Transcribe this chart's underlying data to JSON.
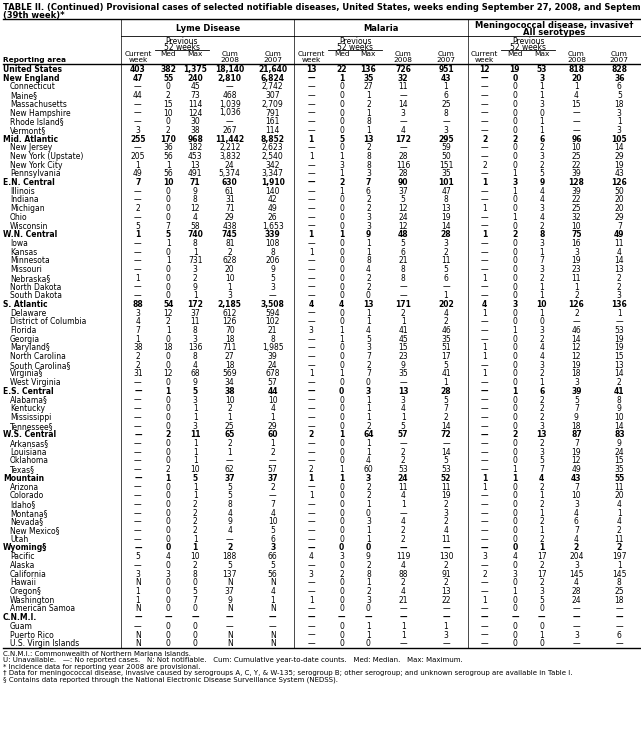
{
  "title_line1": "TABLE II. (Continued) Provisional cases of selected notifiable diseases, United States, weeks ending September 27, 2008, and September 29, 2007",
  "title_line2": "(39th week)*",
  "col_groups": [
    "Lyme Disease",
    "Malaria",
    "Meningococcal disease, invasive†\nAll serotypes"
  ],
  "rows": [
    [
      "United States",
      "403",
      "382",
      "1,375",
      "18,140",
      "21,640",
      "13",
      "22",
      "136",
      "726",
      "951",
      "12",
      "19",
      "53",
      "818",
      "828"
    ],
    [
      "New England",
      "47",
      "55",
      "240",
      "2,810",
      "6,824",
      "—",
      "1",
      "35",
      "32",
      "43",
      "—",
      "0",
      "3",
      "20",
      "36"
    ],
    [
      "Connecticut",
      "—",
      "0",
      "45",
      "—",
      "2,742",
      "—",
      "0",
      "27",
      "11",
      "1",
      "—",
      "0",
      "1",
      "1",
      "6"
    ],
    [
      "Maine§",
      "44",
      "2",
      "73",
      "468",
      "307",
      "—",
      "0",
      "1",
      "—",
      "6",
      "—",
      "0",
      "1",
      "4",
      "5"
    ],
    [
      "Massachusetts",
      "—",
      "15",
      "114",
      "1,039",
      "2,709",
      "—",
      "0",
      "2",
      "14",
      "25",
      "—",
      "0",
      "3",
      "15",
      "18"
    ],
    [
      "New Hampshire",
      "—",
      "10",
      "124",
      "1,036",
      "791",
      "—",
      "0",
      "1",
      "3",
      "8",
      "—",
      "0",
      "0",
      "—",
      "3"
    ],
    [
      "Rhode Island§",
      "—",
      "0",
      "30",
      "—",
      "161",
      "—",
      "0",
      "8",
      "—",
      "—",
      "—",
      "0",
      "1",
      "—",
      "1"
    ],
    [
      "Vermont§",
      "3",
      "2",
      "38",
      "267",
      "114",
      "—",
      "0",
      "1",
      "4",
      "3",
      "—",
      "0",
      "1",
      "—",
      "3"
    ],
    [
      "Mid. Atlantic",
      "255",
      "170",
      "968",
      "11,442",
      "8,852",
      "1",
      "5",
      "13",
      "172",
      "295",
      "2",
      "2",
      "6",
      "96",
      "105"
    ],
    [
      "New Jersey",
      "—",
      "36",
      "182",
      "2,212",
      "2,623",
      "—",
      "0",
      "2",
      "—",
      "59",
      "—",
      "0",
      "2",
      "10",
      "14"
    ],
    [
      "New York (Upstate)",
      "205",
      "56",
      "453",
      "3,832",
      "2,540",
      "1",
      "1",
      "8",
      "28",
      "50",
      "—",
      "0",
      "3",
      "25",
      "29"
    ],
    [
      "New York City",
      "1",
      "1",
      "13",
      "24",
      "342",
      "—",
      "3",
      "8",
      "116",
      "151",
      "2",
      "0",
      "2",
      "22",
      "19"
    ],
    [
      "Pennsylvania",
      "49",
      "56",
      "491",
      "5,374",
      "3,347",
      "—",
      "1",
      "3",
      "28",
      "35",
      "—",
      "1",
      "5",
      "39",
      "43"
    ],
    [
      "E.N. Central",
      "7",
      "10",
      "71",
      "630",
      "1,910",
      "—",
      "2",
      "7",
      "90",
      "101",
      "1",
      "3",
      "9",
      "128",
      "126"
    ],
    [
      "Illinois",
      "—",
      "0",
      "9",
      "61",
      "140",
      "—",
      "1",
      "6",
      "37",
      "47",
      "—",
      "1",
      "4",
      "39",
      "50"
    ],
    [
      "Indiana",
      "—",
      "0",
      "8",
      "31",
      "42",
      "—",
      "0",
      "2",
      "5",
      "8",
      "—",
      "0",
      "4",
      "22",
      "20"
    ],
    [
      "Michigan",
      "2",
      "0",
      "12",
      "71",
      "49",
      "—",
      "0",
      "2",
      "12",
      "13",
      "1",
      "0",
      "3",
      "25",
      "20"
    ],
    [
      "Ohio",
      "—",
      "0",
      "4",
      "29",
      "26",
      "—",
      "0",
      "3",
      "24",
      "19",
      "—",
      "1",
      "4",
      "32",
      "29"
    ],
    [
      "Wisconsin",
      "5",
      "7",
      "58",
      "438",
      "1,653",
      "—",
      "0",
      "3",
      "12",
      "14",
      "—",
      "0",
      "2",
      "10",
      "7"
    ],
    [
      "W.N. Central",
      "1",
      "5",
      "740",
      "745",
      "339",
      "1",
      "1",
      "9",
      "48",
      "28",
      "1",
      "2",
      "8",
      "75",
      "49"
    ],
    [
      "Iowa",
      "—",
      "1",
      "8",
      "81",
      "108",
      "—",
      "0",
      "1",
      "5",
      "3",
      "—",
      "0",
      "3",
      "16",
      "11"
    ],
    [
      "Kansas",
      "—",
      "0",
      "1",
      "2",
      "8",
      "1",
      "0",
      "1",
      "6",
      "2",
      "—",
      "0",
      "1",
      "3",
      "4"
    ],
    [
      "Minnesota",
      "—",
      "1",
      "731",
      "628",
      "206",
      "—",
      "0",
      "8",
      "21",
      "11",
      "—",
      "0",
      "7",
      "19",
      "14"
    ],
    [
      "Missouri",
      "—",
      "0",
      "3",
      "20",
      "9",
      "—",
      "0",
      "4",
      "8",
      "5",
      "—",
      "0",
      "3",
      "23",
      "13"
    ],
    [
      "Nebraska§",
      "1",
      "0",
      "2",
      "10",
      "5",
      "—",
      "0",
      "2",
      "8",
      "6",
      "1",
      "0",
      "2",
      "11",
      "2"
    ],
    [
      "North Dakota",
      "—",
      "0",
      "9",
      "1",
      "3",
      "—",
      "0",
      "2",
      "—",
      "—",
      "—",
      "0",
      "1",
      "1",
      "2"
    ],
    [
      "South Dakota",
      "—",
      "0",
      "1",
      "3",
      "—",
      "—",
      "0",
      "0",
      "—",
      "1",
      "—",
      "0",
      "1",
      "2",
      "3"
    ],
    [
      "S. Atlantic",
      "88",
      "54",
      "172",
      "2,185",
      "3,508",
      "4",
      "4",
      "13",
      "171",
      "202",
      "4",
      "3",
      "10",
      "126",
      "136"
    ],
    [
      "Delaware",
      "3",
      "12",
      "37",
      "612",
      "594",
      "—",
      "0",
      "1",
      "2",
      "4",
      "1",
      "0",
      "1",
      "2",
      "1"
    ],
    [
      "District of Columbia",
      "4",
      "2",
      "11",
      "126",
      "102",
      "—",
      "0",
      "1",
      "1",
      "2",
      "—",
      "0",
      "0",
      "—",
      "—"
    ],
    [
      "Florida",
      "7",
      "1",
      "8",
      "70",
      "21",
      "3",
      "1",
      "4",
      "41",
      "46",
      "—",
      "1",
      "3",
      "46",
      "53"
    ],
    [
      "Georgia",
      "1",
      "0",
      "3",
      "18",
      "8",
      "—",
      "1",
      "5",
      "45",
      "35",
      "—",
      "0",
      "2",
      "14",
      "19"
    ],
    [
      "Maryland§",
      "38",
      "18",
      "136",
      "711",
      "1,985",
      "—",
      "0",
      "3",
      "15",
      "51",
      "1",
      "0",
      "4",
      "12",
      "19"
    ],
    [
      "North Carolina",
      "2",
      "0",
      "8",
      "27",
      "39",
      "—",
      "0",
      "7",
      "23",
      "17",
      "1",
      "0",
      "4",
      "12",
      "15"
    ],
    [
      "South Carolina§",
      "2",
      "0",
      "4",
      "18",
      "24",
      "—",
      "0",
      "2",
      "9",
      "5",
      "—",
      "0",
      "3",
      "19",
      "13"
    ],
    [
      "Virginia§",
      "31",
      "12",
      "68",
      "569",
      "678",
      "1",
      "1",
      "7",
      "35",
      "41",
      "1",
      "0",
      "2",
      "18",
      "14"
    ],
    [
      "West Virginia",
      "—",
      "0",
      "9",
      "34",
      "57",
      "—",
      "0",
      "0",
      "—",
      "1",
      "—",
      "0",
      "1",
      "3",
      "2"
    ],
    [
      "E.S. Central",
      "—",
      "1",
      "5",
      "38",
      "44",
      "—",
      "0",
      "3",
      "13",
      "28",
      "—",
      "1",
      "6",
      "39",
      "41"
    ],
    [
      "Alabama§",
      "—",
      "0",
      "3",
      "10",
      "10",
      "—",
      "0",
      "1",
      "3",
      "5",
      "—",
      "0",
      "2",
      "5",
      "8"
    ],
    [
      "Kentucky",
      "—",
      "0",
      "1",
      "2",
      "4",
      "—",
      "0",
      "1",
      "4",
      "7",
      "—",
      "0",
      "2",
      "7",
      "9"
    ],
    [
      "Mississippi",
      "—",
      "0",
      "1",
      "1",
      "1",
      "—",
      "0",
      "1",
      "1",
      "2",
      "—",
      "0",
      "2",
      "9",
      "10"
    ],
    [
      "Tennessee§",
      "—",
      "0",
      "3",
      "25",
      "29",
      "—",
      "0",
      "2",
      "5",
      "14",
      "—",
      "0",
      "3",
      "18",
      "14"
    ],
    [
      "W.S. Central",
      "—",
      "2",
      "11",
      "65",
      "60",
      "2",
      "1",
      "64",
      "57",
      "72",
      "—",
      "2",
      "13",
      "87",
      "83"
    ],
    [
      "Arkansas§",
      "—",
      "0",
      "1",
      "2",
      "1",
      "—",
      "0",
      "1",
      "—",
      "—",
      "—",
      "0",
      "2",
      "7",
      "9"
    ],
    [
      "Louisiana",
      "—",
      "0",
      "1",
      "1",
      "2",
      "—",
      "0",
      "1",
      "2",
      "14",
      "—",
      "0",
      "3",
      "19",
      "24"
    ],
    [
      "Oklahoma",
      "—",
      "0",
      "1",
      "—",
      "—",
      "—",
      "0",
      "4",
      "2",
      "5",
      "—",
      "0",
      "5",
      "12",
      "15"
    ],
    [
      "Texas§",
      "—",
      "2",
      "10",
      "62",
      "57",
      "2",
      "1",
      "60",
      "53",
      "53",
      "—",
      "1",
      "7",
      "49",
      "35"
    ],
    [
      "Mountain",
      "—",
      "1",
      "5",
      "37",
      "37",
      "1",
      "1",
      "3",
      "24",
      "52",
      "1",
      "1",
      "4",
      "43",
      "55"
    ],
    [
      "Arizona",
      "—",
      "0",
      "1",
      "5",
      "2",
      "—",
      "0",
      "2",
      "11",
      "11",
      "1",
      "0",
      "2",
      "7",
      "11"
    ],
    [
      "Colorado",
      "—",
      "0",
      "1",
      "5",
      "—",
      "1",
      "0",
      "2",
      "4",
      "19",
      "—",
      "0",
      "1",
      "10",
      "20"
    ],
    [
      "Idaho§",
      "—",
      "0",
      "2",
      "8",
      "7",
      "—",
      "0",
      "1",
      "1",
      "2",
      "—",
      "0",
      "2",
      "3",
      "4"
    ],
    [
      "Montana§",
      "—",
      "0",
      "2",
      "4",
      "4",
      "—",
      "0",
      "0",
      "—",
      "3",
      "—",
      "0",
      "1",
      "4",
      "1"
    ],
    [
      "Nevada§",
      "—",
      "0",
      "2",
      "9",
      "10",
      "—",
      "0",
      "3",
      "4",
      "2",
      "—",
      "0",
      "2",
      "6",
      "4"
    ],
    [
      "New Mexico§",
      "—",
      "0",
      "2",
      "4",
      "5",
      "—",
      "0",
      "1",
      "2",
      "4",
      "—",
      "0",
      "1",
      "7",
      "2"
    ],
    [
      "Utah",
      "—",
      "0",
      "1",
      "—",
      "6",
      "—",
      "0",
      "1",
      "2",
      "11",
      "—",
      "0",
      "2",
      "4",
      "11"
    ],
    [
      "Wyoming§",
      "—",
      "0",
      "1",
      "2",
      "3",
      "—",
      "0",
      "0",
      "—",
      "—",
      "—",
      "0",
      "1",
      "2",
      "2"
    ],
    [
      "Pacific",
      "5",
      "4",
      "10",
      "188",
      "66",
      "4",
      "3",
      "9",
      "119",
      "130",
      "3",
      "4",
      "17",
      "204",
      "197"
    ],
    [
      "Alaska",
      "—",
      "0",
      "2",
      "5",
      "5",
      "—",
      "0",
      "2",
      "4",
      "2",
      "—",
      "0",
      "2",
      "3",
      "1"
    ],
    [
      "California",
      "3",
      "3",
      "8",
      "137",
      "56",
      "3",
      "2",
      "8",
      "88",
      "91",
      "2",
      "3",
      "17",
      "145",
      "145"
    ],
    [
      "Hawaii",
      "N",
      "0",
      "0",
      "N",
      "N",
      "—",
      "0",
      "1",
      "2",
      "2",
      "—",
      "0",
      "2",
      "4",
      "8"
    ],
    [
      "Oregon§",
      "1",
      "0",
      "5",
      "37",
      "4",
      "—",
      "0",
      "2",
      "4",
      "13",
      "—",
      "1",
      "3",
      "28",
      "25"
    ],
    [
      "Washington",
      "1",
      "0",
      "7",
      "9",
      "1",
      "1",
      "0",
      "3",
      "21",
      "22",
      "1",
      "0",
      "5",
      "24",
      "18"
    ],
    [
      "American Samoa",
      "N",
      "0",
      "0",
      "N",
      "N",
      "—",
      "0",
      "0",
      "—",
      "—",
      "—",
      "0",
      "0",
      "—",
      "—"
    ],
    [
      "C.N.M.I.",
      "—",
      "—",
      "—",
      "—",
      "—",
      "—",
      "—",
      "—",
      "—",
      "—",
      "—",
      "—",
      "—",
      "—",
      "—"
    ],
    [
      "Guam",
      "—",
      "0",
      "0",
      "—",
      "—",
      "—",
      "0",
      "1",
      "1",
      "1",
      "—",
      "0",
      "0",
      "—",
      "—"
    ],
    [
      "Puerto Rico",
      "N",
      "0",
      "0",
      "N",
      "N",
      "—",
      "0",
      "1",
      "1",
      "3",
      "—",
      "0",
      "1",
      "3",
      "6"
    ],
    [
      "U.S. Virgin Islands",
      "N",
      "0",
      "0",
      "N",
      "N",
      "—",
      "0",
      "0",
      "—",
      "—",
      "—",
      "0",
      "0",
      "—",
      "—"
    ]
  ],
  "bold_rows": [
    0,
    1,
    8,
    13,
    19,
    27,
    37,
    42,
    47,
    55,
    63
  ],
  "footnotes": [
    "C.N.M.I.: Commonwealth of Northern Mariana Islands.",
    "U: Unavailable.   —: No reported cases.   N: Not notifiable.   Cum: Cumulative year-to-date counts.   Med: Median.   Max: Maximum.",
    "* Incidence data for reporting year 2008 are provisional.",
    "† Data for meningococcal disease, invasive caused by serogroups A, C, Y, & W-135; serogroup B; other serogroup; and unknown serogroup are available in Table I.",
    "§ Contains data reported through the National Electronic Disease Surveillance System (NEDSS)."
  ],
  "bg_color": "#ffffff",
  "text_color": "#000000"
}
